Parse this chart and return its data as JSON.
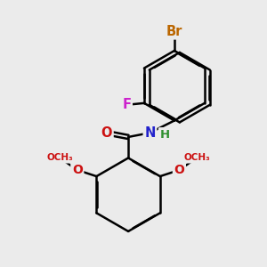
{
  "background_color": "#ebebeb",
  "atom_colors": {
    "C": "#000000",
    "H": "#2f8f2f",
    "N": "#2222cc",
    "O": "#cc1111",
    "F": "#cc22cc",
    "Br": "#bb6600"
  },
  "bond_color": "#000000",
  "bond_width": 1.8,
  "figsize": [
    3.0,
    3.0
  ],
  "dpi": 100
}
